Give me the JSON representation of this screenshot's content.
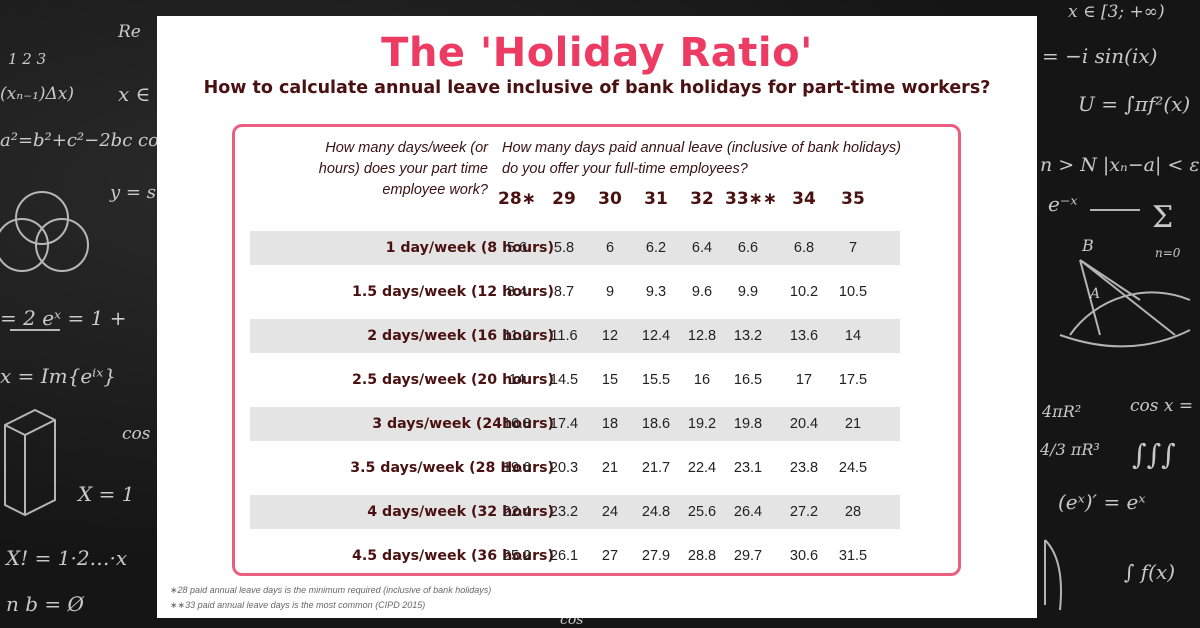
{
  "title": "The 'Holiday Ratio'",
  "subtitle": "How to calculate annual leave inclusive of bank holidays for part-time workers?",
  "question_left": "How many days/week (or hours) does your part time employee work?",
  "question_right": "How many days paid annual leave (inclusive of bank holidays) do you offer your full-time employees?",
  "columns": [
    "28∗",
    "29",
    "30",
    "31",
    "32",
    "33∗∗",
    "34",
    "35"
  ],
  "rows": [
    {
      "label": "1 day/week (8 hours)",
      "values": [
        "5.6",
        "5.8",
        "6",
        "6.2",
        "6.4",
        "6.6",
        "6.8",
        "7"
      ]
    },
    {
      "label": "1.5 days/week (12 hours)",
      "values": [
        "8.4",
        "8.7",
        "9",
        "9.3",
        "9.6",
        "9.9",
        "10.2",
        "10.5"
      ]
    },
    {
      "label": "2 days/week (16 hours)",
      "values": [
        "11.2",
        "11.6",
        "12",
        "12.4",
        "12.8",
        "13.2",
        "13.6",
        "14"
      ]
    },
    {
      "label": "2.5 days/week (20 hours)",
      "values": [
        "14",
        "14.5",
        "15",
        "15.5",
        "16",
        "16.5",
        "17",
        "17.5"
      ]
    },
    {
      "label": "3 days/week (24hours)",
      "values": [
        "16.8",
        "17.4",
        "18",
        "18.6",
        "19.2",
        "19.8",
        "20.4",
        "21"
      ]
    },
    {
      "label": "3.5 days/week (28 Hours)",
      "values": [
        "19.6",
        "20.3",
        "21",
        "21.7",
        "22.4",
        "23.1",
        "23.8",
        "24.5"
      ]
    },
    {
      "label": "4 days/week (32 hours)",
      "values": [
        "22.4",
        "23.2",
        "24",
        "24.8",
        "25.6",
        "26.4",
        "27.2",
        "28"
      ]
    },
    {
      "label": "4.5 days/week (36 hours)",
      "values": [
        "25.2",
        "26.1",
        "27",
        "27.9",
        "28.8",
        "29.7",
        "30.6",
        "31.5"
      ]
    }
  ],
  "footnotes": [
    "∗28 paid annual leave days is the minimum required (inclusive of bank holidays)",
    "∗∗33 paid annual leave days is the most common (CIPD 2015)"
  ],
  "chalk_formulas": [
    "Re",
    "1  2  3",
    "(xₙ₋₁)Δx)",
    "x ∈",
    "a²=b²+c²−2bc co",
    "y = s",
    "= 2  eˣ = 1 +",
    "x = Im{eⁱˣ}",
    "cos",
    "X = 1",
    "X! = 1·2…·x",
    "n b = Ø",
    "x ∈ [3; +∞)",
    "= −i sin(ix)",
    "U = ∫πf²(x)",
    "n > N |xₙ−a| < ε",
    "e⁻ˣ",
    "Σ",
    "n=0",
    "B",
    "A",
    "4πR²",
    "4/3 πR³",
    "cos x =",
    "∫∫∫",
    "(eˣ)′ = eˣ",
    "∫ f(x)",
    "cos"
  ],
  "colors": {
    "title": "#ec3c63",
    "subtitle": "#4a1111",
    "border": "#ec5e7d",
    "shaded_row": "#e4e4e4",
    "chalkboard": "#151515"
  }
}
